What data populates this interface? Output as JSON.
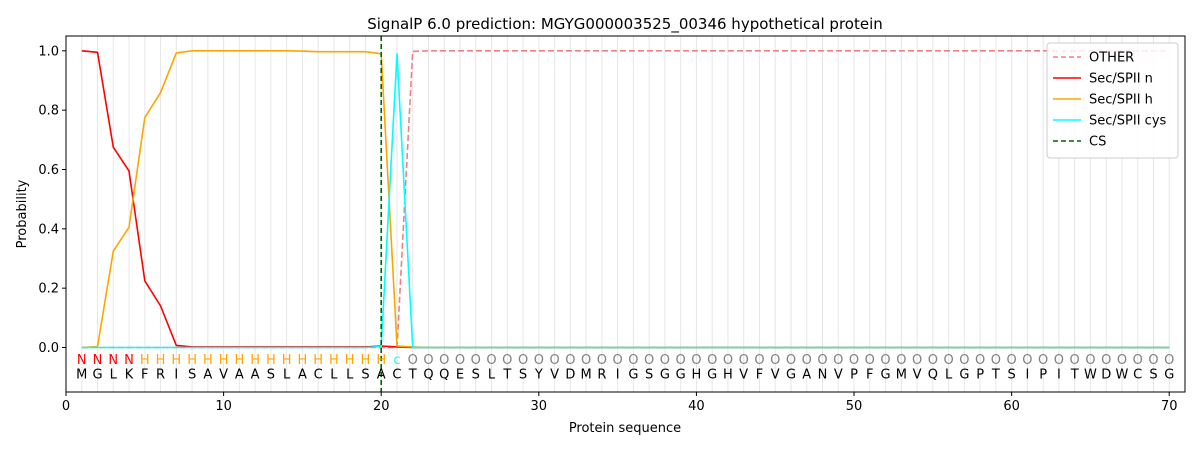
{
  "chart_data": {
    "type": "line",
    "title": "SignalP 6.0 prediction: MGYG000003525_00346 hypothetical protein",
    "xlabel": "Protein sequence",
    "ylabel": "Probability",
    "xlim": [
      0,
      71
    ],
    "ylim": [
      -0.15,
      1.05
    ],
    "x_ticks": [
      0,
      10,
      20,
      30,
      40,
      50,
      60,
      70
    ],
    "y_ticks": [
      0.0,
      0.2,
      0.4,
      0.6,
      0.8,
      1.0
    ],
    "x_tick_labels": [
      "0",
      "10",
      "20",
      "30",
      "40",
      "50",
      "60",
      "70"
    ],
    "y_tick_labels": [
      "0.0",
      "0.2",
      "0.4",
      "0.6",
      "0.8",
      "1.0"
    ],
    "legend_position": "top-right",
    "vertical_gridlines": "at every residue position",
    "sequence": [
      "M",
      "G",
      "L",
      "K",
      "F",
      "R",
      "I",
      "S",
      "A",
      "V",
      "A",
      "A",
      "S",
      "L",
      "A",
      "C",
      "L",
      "L",
      "S",
      "A",
      "C",
      "T",
      "Q",
      "Q",
      "E",
      "S",
      "L",
      "T",
      "S",
      "Y",
      "V",
      "D",
      "M",
      "R",
      "I",
      "G",
      "S",
      "G",
      "G",
      "H",
      "G",
      "H",
      "V",
      "F",
      "V",
      "G",
      "A",
      "N",
      "V",
      "P",
      "F",
      "G",
      "M",
      "V",
      "Q",
      "L",
      "G",
      "P",
      "T",
      "S",
      "I",
      "P",
      "I",
      "T",
      "W",
      "D",
      "W",
      "C",
      "S",
      "G"
    ],
    "labels": [
      "N",
      "N",
      "N",
      "N",
      "H",
      "H",
      "H",
      "H",
      "H",
      "H",
      "H",
      "H",
      "H",
      "H",
      "H",
      "H",
      "H",
      "H",
      "H",
      "H",
      "c",
      "O",
      "O",
      "O",
      "O",
      "O",
      "O",
      "O",
      "O",
      "O",
      "O",
      "O",
      "O",
      "O",
      "O",
      "O",
      "O",
      "O",
      "O",
      "O",
      "O",
      "O",
      "O",
      "O",
      "O",
      "O",
      "O",
      "O",
      "O",
      "O",
      "O",
      "O",
      "O",
      "O",
      "O",
      "O",
      "O",
      "O",
      "O",
      "O",
      "O",
      "O",
      "O",
      "O",
      "O",
      "O",
      "O",
      "O",
      "O",
      "O"
    ],
    "label_colors": {
      "N": "#ff0000",
      "H": "#ffa500",
      "c": "#00ffff",
      "O": "#808080"
    },
    "cs_position": 20,
    "series": [
      {
        "name": "OTHER",
        "color": "#f08080",
        "dash": "dashed",
        "values": [
          0,
          0,
          0,
          0,
          0,
          0,
          0,
          0,
          0,
          0,
          0,
          0,
          0,
          0,
          0,
          0,
          0,
          0,
          0,
          0,
          0.0,
          0.998,
          1,
          1,
          1,
          1,
          1,
          1,
          1,
          1,
          1,
          1,
          1,
          1,
          1,
          1,
          1,
          1,
          1,
          1,
          1,
          1,
          1,
          1,
          1,
          1,
          1,
          1,
          1,
          1,
          1,
          1,
          1,
          1,
          1,
          1,
          1,
          1,
          1,
          1,
          1,
          1,
          1,
          1,
          1,
          1,
          1,
          1,
          1,
          1
        ]
      },
      {
        "name": "Sec/SPII n",
        "color": "#ff0000",
        "dash": "solid",
        "values": [
          1.0,
          0.995,
          0.675,
          0.595,
          0.225,
          0.14,
          0.007,
          0.002,
          0.002,
          0.002,
          0.002,
          0.002,
          0.002,
          0.002,
          0.002,
          0.002,
          0.002,
          0.002,
          0.002,
          0.005,
          0.002,
          0,
          0,
          0,
          0,
          0,
          0,
          0,
          0,
          0,
          0,
          0,
          0,
          0,
          0,
          0,
          0,
          0,
          0,
          0,
          0,
          0,
          0,
          0,
          0,
          0,
          0,
          0,
          0,
          0,
          0,
          0,
          0,
          0,
          0,
          0,
          0,
          0,
          0,
          0,
          0,
          0,
          0,
          0,
          0,
          0,
          0,
          0,
          0,
          0
        ]
      },
      {
        "name": "Sec/SPII h",
        "color": "#ffa500",
        "dash": "solid",
        "values": [
          0,
          0.003,
          0.325,
          0.405,
          0.775,
          0.86,
          0.993,
          1.0,
          1.0,
          1.0,
          1.0,
          1.0,
          1.0,
          1.0,
          0.999,
          0.997,
          0.997,
          0.997,
          0.997,
          0.99,
          0.005,
          0.002,
          0,
          0,
          0,
          0,
          0,
          0,
          0,
          0,
          0,
          0,
          0,
          0,
          0,
          0,
          0,
          0,
          0,
          0,
          0,
          0,
          0,
          0,
          0,
          0,
          0,
          0,
          0,
          0,
          0,
          0,
          0,
          0,
          0,
          0,
          0,
          0,
          0,
          0,
          0,
          0,
          0,
          0,
          0,
          0,
          0,
          0,
          0,
          0
        ]
      },
      {
        "name": "Sec/SPII cys",
        "color": "#00ffff",
        "dash": "solid",
        "values": [
          0,
          0,
          0,
          0,
          0,
          0,
          0,
          0,
          0,
          0,
          0,
          0,
          0,
          0,
          0,
          0,
          0,
          0,
          0,
          0.003,
          0.99,
          0.0,
          0,
          0,
          0,
          0,
          0,
          0,
          0,
          0,
          0,
          0,
          0,
          0,
          0,
          0,
          0,
          0,
          0,
          0,
          0,
          0,
          0,
          0,
          0,
          0,
          0,
          0,
          0,
          0,
          0,
          0,
          0,
          0,
          0,
          0,
          0,
          0,
          0,
          0,
          0,
          0,
          0,
          0,
          0,
          0,
          0,
          0,
          0,
          0
        ]
      }
    ],
    "legend": [
      {
        "name": "OTHER",
        "color": "#f08080",
        "dash": "dashed"
      },
      {
        "name": "Sec/SPII n",
        "color": "#ff0000",
        "dash": "solid"
      },
      {
        "name": "Sec/SPII h",
        "color": "#ffa500",
        "dash": "solid"
      },
      {
        "name": "Sec/SPII cys",
        "color": "#00ffff",
        "dash": "solid"
      },
      {
        "name": "CS",
        "color": "#006400",
        "dash": "dashed"
      }
    ]
  }
}
